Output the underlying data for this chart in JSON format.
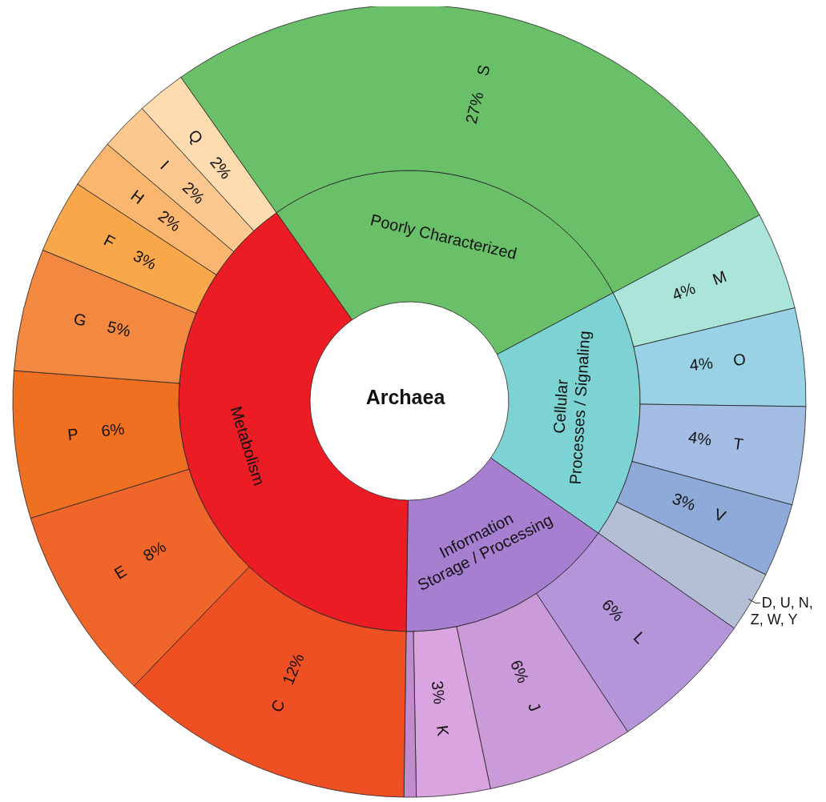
{
  "chart_data": [
    {
      "type": "donut",
      "title": "Archaea",
      "categories": [
        "Poorly Characterized",
        "Cellular Processes / Signaling",
        "Information Storage / Processing",
        "Metabolism"
      ],
      "values": [
        27,
        17.5,
        15.5,
        40
      ],
      "colors": [
        "#6abf69",
        "#7dd3d3",
        "#a67fd0",
        "#ec1c24"
      ]
    },
    {
      "type": "donut",
      "categories": [
        "S",
        "M",
        "O",
        "T",
        "V",
        "D, U, N, Z, W, Y",
        "L",
        "J",
        "K",
        null,
        "C",
        "E",
        "P",
        "G",
        "F",
        "H",
        "I",
        "Q"
      ],
      "values": [
        27,
        4,
        4,
        4,
        3,
        2.5,
        6,
        6,
        3,
        0.5,
        12,
        8,
        6,
        5,
        3,
        2,
        2,
        2
      ],
      "value_labels": [
        "27%",
        "4%",
        "4%",
        "4%",
        "3%",
        null,
        "6%",
        "6%",
        "3%",
        null,
        "12%",
        "8%",
        "6%",
        "5%",
        "3%",
        "2%",
        "2%",
        "2%"
      ],
      "colors": [
        "#6abf69",
        "#abe5da",
        "#98d2e4",
        "#a2bce4",
        "#8eaad8",
        "#b3bfd4",
        "#b595da",
        "#cb9ad9",
        "#d9a4e0",
        "#c08cce",
        "#ef5023",
        "#f0662a",
        "#f07021",
        "#f38840",
        "#f8a84a",
        "#fab56e",
        "#fcc88f",
        "#fedcb0"
      ]
    }
  ]
}
